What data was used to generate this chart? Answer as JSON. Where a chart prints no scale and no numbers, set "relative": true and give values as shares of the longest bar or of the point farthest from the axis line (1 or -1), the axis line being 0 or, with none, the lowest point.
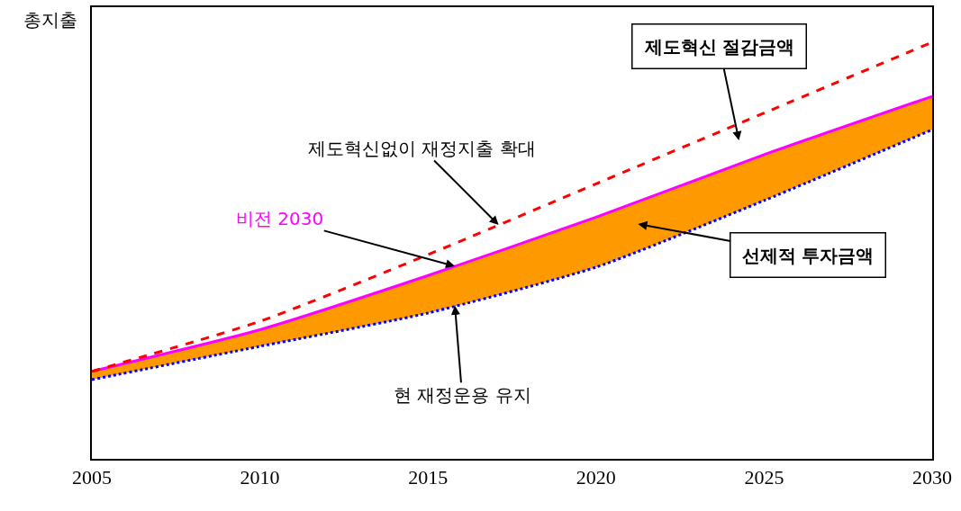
{
  "chart_data": {
    "type": "line",
    "relative": true,
    "ylabel": "총지출",
    "x": [
      2005,
      2010,
      2015,
      2020,
      2025,
      2030
    ],
    "xlim": [
      2005,
      2030
    ],
    "xticks": [
      2005,
      2010,
      2015,
      2020,
      2025,
      2030
    ],
    "grid": false,
    "legend": false,
    "series": [
      {
        "name": "현 재정운용 유지",
        "color": "#0000ff",
        "line_style": "dotted",
        "values": [
          0.19,
          0.27,
          0.35,
          0.46,
          0.62,
          0.79
        ]
      },
      {
        "type": "area",
        "color": "#ff9900",
        "values": [
          0.21,
          0.31,
          0.44,
          0.58,
          0.73,
          0.87
        ]
      },
      {
        "name": "비전 2030",
        "color": "#ff00ff",
        "line_style": "solid",
        "values": [
          0.21,
          0.31,
          0.44,
          0.58,
          0.73,
          0.87
        ]
      },
      {
        "name": "제도혁신없이 재정지출 확대",
        "color": "#ff0000",
        "line_style": "dashed",
        "values": [
          0.21,
          0.33,
          0.49,
          0.66,
          0.83,
          1.0
        ]
      }
    ],
    "annotations": [
      "제도혁신 절감금액",
      "선제적 투자금액"
    ]
  }
}
